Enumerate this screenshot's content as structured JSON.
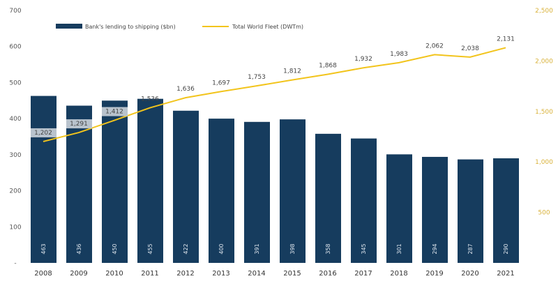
{
  "chart_data": {
    "type": "bar+line",
    "categories": [
      "2008",
      "2009",
      "2010",
      "2011",
      "2012",
      "2013",
      "2014",
      "2015",
      "2016",
      "2017",
      "2018",
      "2019",
      "2020",
      "2021"
    ],
    "series": [
      {
        "name": "Bank's lending to shipping ($bn)",
        "type": "bar",
        "axis": "left",
        "color": "#163c5e",
        "values": [
          463,
          436,
          450,
          455,
          422,
          400,
          391,
          398,
          358,
          345,
          301,
          294,
          287,
          290
        ]
      },
      {
        "name": "Total World Fleet (DWTm)",
        "type": "line",
        "axis": "right",
        "color": "#f2c41c",
        "values": [
          1202,
          1291,
          1412,
          1536,
          1636,
          1697,
          1753,
          1812,
          1868,
          1932,
          1983,
          2062,
          2038,
          2131
        ],
        "labels": [
          "1,202",
          "1,291",
          "1,412",
          "1,536",
          "1,636",
          "1,697",
          "1,753",
          "1,812",
          "1,868",
          "1,932",
          "1,983",
          "2,062",
          "2,038",
          "2,131"
        ]
      }
    ],
    "left_axis": {
      "ylim": [
        0,
        700
      ],
      "ticks": [
        "-",
        "100",
        "200",
        "300",
        "400",
        "500",
        "600",
        "700"
      ]
    },
    "right_axis": {
      "ylim": [
        0,
        2500
      ],
      "ticks": [
        "500",
        "1,000",
        "1,500",
        "2,000",
        "2,500"
      ]
    },
    "grid": false,
    "legend": "top-left"
  }
}
